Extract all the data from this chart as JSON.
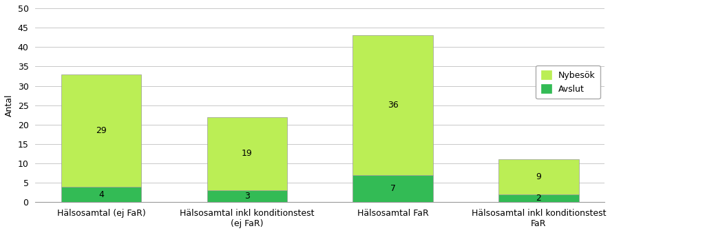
{
  "categories": [
    "Hälsosamtal (ej FaR)",
    "Hälsosamtal inkl konditionstest\n(ej FaR)",
    "Hälsosamtal FaR",
    "Hälsosamtal inkl konditionstest\nFaR"
  ],
  "avslut_values": [
    4,
    3,
    7,
    2
  ],
  "nybesok_values": [
    29,
    19,
    36,
    9
  ],
  "avslut_color": "#33bb55",
  "nybesok_color": "#bbee55",
  "ylabel": "Antal",
  "ylim": [
    0,
    50
  ],
  "yticks": [
    0,
    5,
    10,
    15,
    20,
    25,
    30,
    35,
    40,
    45,
    50
  ],
  "legend_labels": [
    "Nybesök",
    "Avslut"
  ],
  "background_color": "#ffffff",
  "bar_width": 0.55,
  "font_size_labels": 9,
  "font_size_ticks": 9,
  "font_size_ylabel": 9,
  "grid_color": "#c8c8c8",
  "spine_color": "#999999"
}
